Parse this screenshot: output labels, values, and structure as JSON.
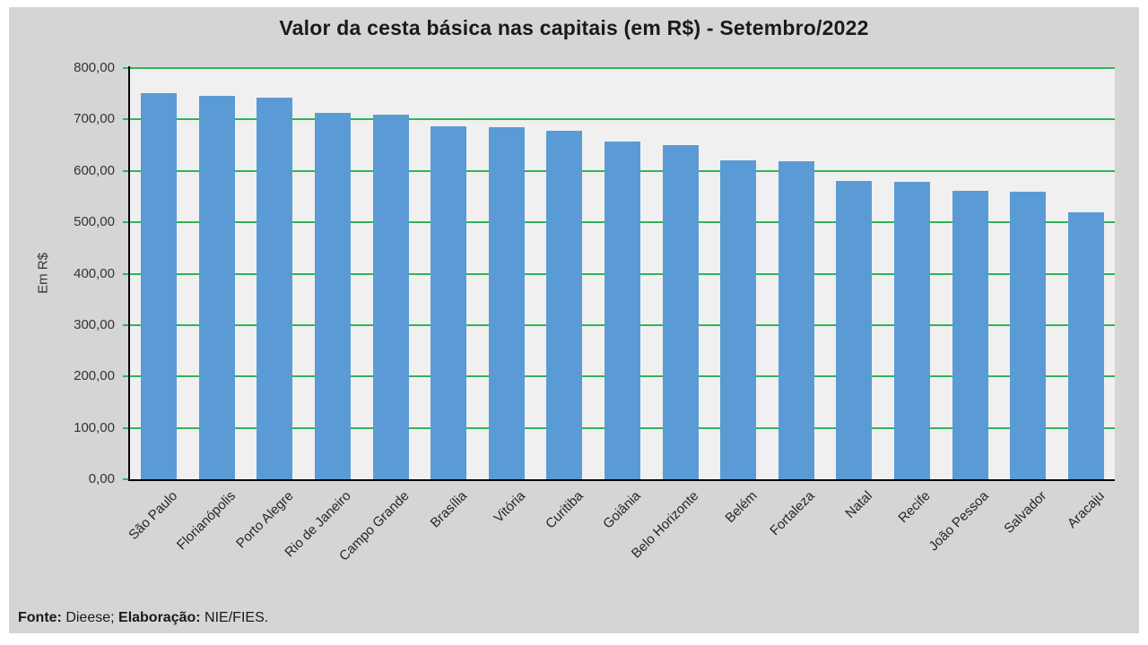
{
  "title": "Valor da cesta básica nas capitais (em R$) - Setembro/2022",
  "y_axis": {
    "label": "Em R$",
    "tick_labels": [
      "800,00",
      "700,00",
      "600,00",
      "500,00",
      "400,00",
      "300,00",
      "200,00",
      "100,00",
      "0,00"
    ]
  },
  "footer": {
    "source_label": "Fonte:",
    "source_value": " Dieese; ",
    "elaboration_label": "Elaboração:",
    "elaboration_value": " NIE/FIES."
  },
  "colors": {
    "bar": "#5B9BD5",
    "gridline": "#2FB457",
    "axis": "#000000",
    "panel_background": "#D5D5D5",
    "plot_background": "#F0F0F0",
    "text": "#262626"
  },
  "chart_data": {
    "type": "bar",
    "categories": [
      "São Paulo",
      "Florianópolis",
      "Porto Alegre",
      "Rio de Janeiro",
      "Campo Grande",
      "Brasília",
      "Vitória",
      "Curitiba",
      "Goiânia",
      "Belo Horizonte",
      "Belém",
      "Fortaleza",
      "Natal",
      "Recife",
      "João Pessoa",
      "Salvador",
      "Aracaju"
    ],
    "values": [
      751,
      746,
      742,
      713,
      710,
      687,
      685,
      678,
      657,
      650,
      621,
      619,
      581,
      579,
      562,
      560,
      519
    ],
    "title": "Valor da cesta básica nas capitais (em R$) - Setembro/2022",
    "xlabel": "",
    "ylabel": "Em R$",
    "ylim": [
      0,
      800
    ],
    "ytick_step": 100,
    "grid": true,
    "legend": false,
    "source": "Fonte: Dieese; Elaboração: NIE/FIES."
  }
}
